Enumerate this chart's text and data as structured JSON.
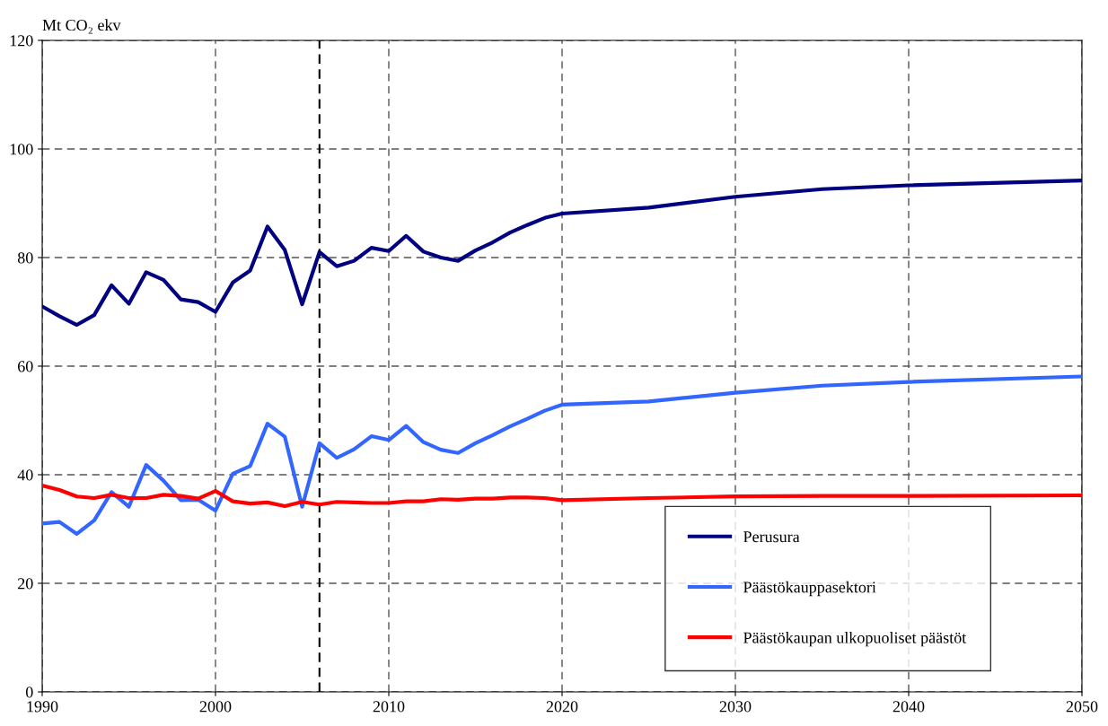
{
  "chart_data": {
    "type": "line",
    "ylabel": "Mt CO₂ ekv",
    "x": [
      1990,
      1991,
      1992,
      1993,
      1994,
      1995,
      1996,
      1997,
      1998,
      1999,
      2000,
      2001,
      2002,
      2003,
      2004,
      2005,
      2006,
      2007,
      2008,
      2009,
      2010,
      2011,
      2012,
      2013,
      2014,
      2015,
      2016,
      2017,
      2018,
      2019,
      2020,
      2025,
      2030,
      2035,
      2040,
      2050
    ],
    "series": [
      {
        "name": "Perusura",
        "color": "#000080",
        "values": [
          71,
          69.2,
          67.6,
          69.4,
          74.9,
          71.5,
          77.3,
          75.9,
          72.3,
          71.8,
          70,
          75.4,
          77.6,
          85.7,
          81.4,
          71.4,
          81,
          78.4,
          79.4,
          81.8,
          81.2,
          84,
          81.1,
          80,
          79.4,
          81.3,
          82.8,
          84.6,
          86,
          87.3,
          88.1,
          89.2,
          91.2,
          92.6,
          93.3,
          94.2
        ]
      },
      {
        "name": "Päästökauppasektori",
        "color": "#3366ff",
        "values": [
          31,
          31.3,
          29.1,
          31.6,
          36.8,
          34.1,
          41.8,
          38.9,
          35.3,
          35.4,
          33.4,
          40.2,
          41.6,
          49.4,
          47,
          34.1,
          45.8,
          43.1,
          44.7,
          47.1,
          46.4,
          49,
          46,
          44.6,
          44,
          45.8,
          47.3,
          48.9,
          50.3,
          51.8,
          52.9,
          53.5,
          55.1,
          56.4,
          57.1,
          58.1
        ]
      },
      {
        "name": "Päästökaupan ulkopuoliset päästöt",
        "color": "#ff0000",
        "values": [
          38,
          37.2,
          36,
          35.7,
          36.3,
          35.7,
          35.7,
          36.3,
          36.1,
          35.6,
          37,
          35.1,
          34.7,
          34.9,
          34.2,
          35,
          34.5,
          35,
          34.9,
          34.8,
          34.8,
          35.1,
          35.1,
          35.5,
          35.4,
          35.6,
          35.6,
          35.8,
          35.8,
          35.7,
          35.3,
          35.7,
          36,
          36.1,
          36.1,
          36.2
        ]
      }
    ],
    "xlim": [
      1990,
      2050
    ],
    "xticks": [
      1990,
      2000,
      2010,
      2020,
      2030,
      2040,
      2050
    ],
    "ylim": [
      0,
      120
    ],
    "yticks": [
      0,
      20,
      40,
      60,
      80,
      100,
      120
    ],
    "grid": true,
    "legend": "lower right",
    "marker": "none",
    "line_style": "solid",
    "ref_lines": [
      {
        "axis": "x",
        "value": 2006,
        "color": "#000000",
        "line_style": "dashed"
      }
    ]
  }
}
